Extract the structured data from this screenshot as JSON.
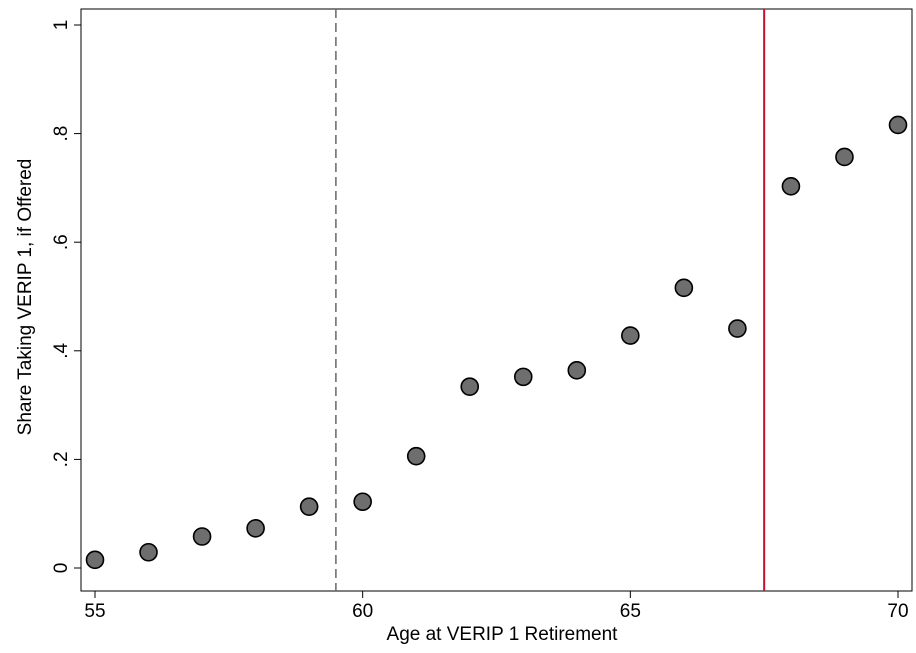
{
  "chart_data": {
    "type": "scatter",
    "xlabel": "Age at VERIP 1 Retirement",
    "ylabel": "Share Taking VERIP 1, if Offered",
    "xlim": [
      55,
      70
    ],
    "ylim": [
      0,
      1
    ],
    "xticks": [
      55,
      60,
      65,
      70
    ],
    "yticks": [
      0,
      0.2,
      0.4,
      0.6,
      0.8,
      1
    ],
    "ytick_labels": [
      "0",
      ".2",
      ".4",
      ".6",
      ".8",
      "1"
    ],
    "grid": false,
    "x": [
      55,
      56,
      57,
      58,
      59,
      60,
      61,
      62,
      63,
      64,
      65,
      66,
      67,
      68,
      69,
      70
    ],
    "y": [
      0.015,
      0.029,
      0.058,
      0.073,
      0.113,
      0.122,
      0.206,
      0.334,
      0.352,
      0.364,
      0.428,
      0.516,
      0.441,
      0.703,
      0.757,
      0.816
    ],
    "marker_color": "#6e6e6e",
    "reference_lines": [
      {
        "x": 59.5,
        "style": "dashed",
        "color": "#666666"
      },
      {
        "x": 67.5,
        "style": "solid",
        "color": "#c8102e"
      }
    ]
  }
}
